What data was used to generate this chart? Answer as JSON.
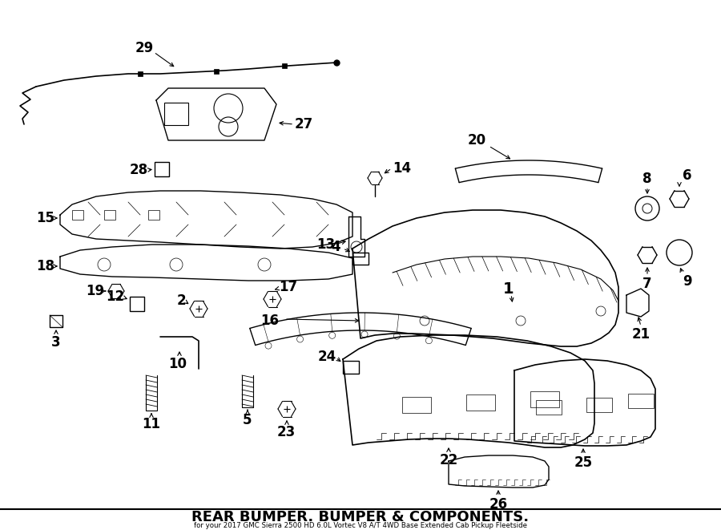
{
  "title": "REAR BUMPER. BUMPER & COMPONENTS.",
  "subtitle": "for your 2017 GMC Sierra 2500 HD 6.0L Vortec V8 A/T 4WD Base Extended Cab Pickup Fleetside",
  "bg_color": "#ffffff",
  "line_color": "#000000"
}
